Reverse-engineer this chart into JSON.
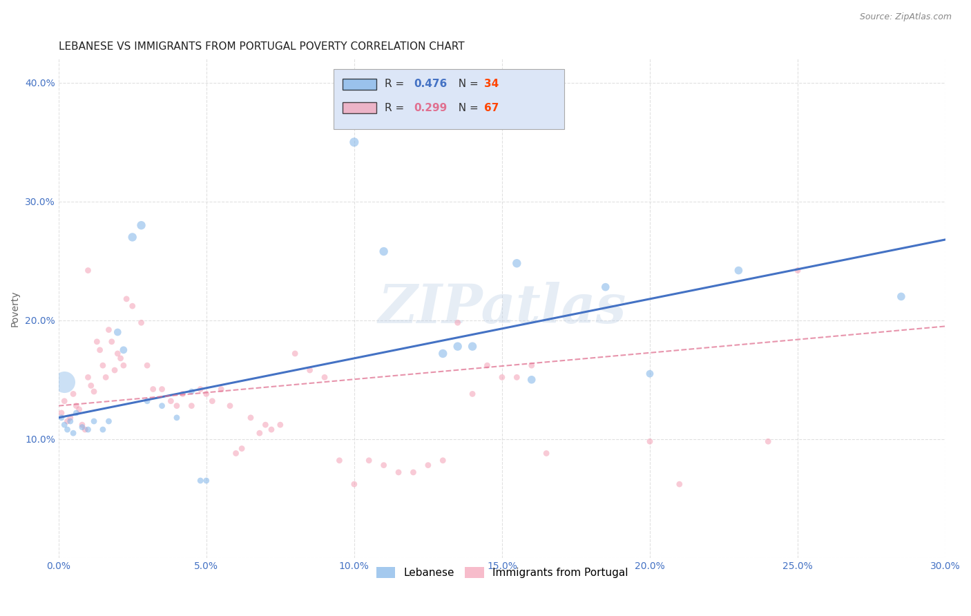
{
  "title": "LEBANESE VS IMMIGRANTS FROM PORTUGAL POVERTY CORRELATION CHART",
  "source": "Source: ZipAtlas.com",
  "ylabel": "Poverty",
  "watermark": "ZIPatlas",
  "xlim": [
    0.0,
    0.3
  ],
  "ylim": [
    0.0,
    0.42
  ],
  "xticks": [
    0.0,
    0.05,
    0.1,
    0.15,
    0.2,
    0.25,
    0.3
  ],
  "yticks": [
    0.0,
    0.1,
    0.2,
    0.3,
    0.4
  ],
  "xtick_labels": [
    "0.0%",
    "5.0%",
    "10.0%",
    "15.0%",
    "20.0%",
    "25.0%",
    "30.0%"
  ],
  "ytick_labels": [
    "",
    "10.0%",
    "20.0%",
    "30.0%",
    "40.0%"
  ],
  "legend_entries": [
    {
      "label": "Lebanese",
      "color": "#7EB3E8",
      "R": "0.476",
      "N": "34"
    },
    {
      "label": "Immigrants from Portugal",
      "color": "#F4A0B5",
      "R": "0.299",
      "N": "67"
    }
  ],
  "blue_scatter": [
    [
      0.001,
      0.118
    ],
    [
      0.002,
      0.112
    ],
    [
      0.003,
      0.108
    ],
    [
      0.004,
      0.115
    ],
    [
      0.005,
      0.105
    ],
    [
      0.006,
      0.122
    ],
    [
      0.008,
      0.11
    ],
    [
      0.01,
      0.108
    ],
    [
      0.012,
      0.115
    ],
    [
      0.015,
      0.108
    ],
    [
      0.017,
      0.115
    ],
    [
      0.02,
      0.19
    ],
    [
      0.022,
      0.175
    ],
    [
      0.025,
      0.27
    ],
    [
      0.028,
      0.28
    ],
    [
      0.03,
      0.132
    ],
    [
      0.035,
      0.128
    ],
    [
      0.04,
      0.118
    ],
    [
      0.045,
      0.14
    ],
    [
      0.048,
      0.065
    ],
    [
      0.05,
      0.065
    ],
    [
      0.1,
      0.35
    ],
    [
      0.11,
      0.258
    ],
    [
      0.13,
      0.172
    ],
    [
      0.135,
      0.178
    ],
    [
      0.14,
      0.178
    ],
    [
      0.155,
      0.248
    ],
    [
      0.16,
      0.15
    ],
    [
      0.185,
      0.228
    ],
    [
      0.2,
      0.155
    ],
    [
      0.23,
      0.242
    ],
    [
      0.285,
      0.22
    ]
  ],
  "blue_scatter_sizes": [
    40,
    40,
    40,
    40,
    40,
    40,
    40,
    40,
    40,
    40,
    40,
    60,
    60,
    80,
    80,
    40,
    40,
    40,
    40,
    40,
    40,
    90,
    80,
    80,
    80,
    80,
    80,
    70,
    70,
    60,
    70,
    70
  ],
  "blue_large_dot": [
    0.002,
    0.148
  ],
  "blue_large_dot_size": 500,
  "pink_scatter": [
    [
      0.001,
      0.122
    ],
    [
      0.002,
      0.132
    ],
    [
      0.003,
      0.115
    ],
    [
      0.004,
      0.118
    ],
    [
      0.005,
      0.138
    ],
    [
      0.006,
      0.128
    ],
    [
      0.007,
      0.125
    ],
    [
      0.008,
      0.112
    ],
    [
      0.009,
      0.108
    ],
    [
      0.01,
      0.152
    ],
    [
      0.011,
      0.145
    ],
    [
      0.012,
      0.14
    ],
    [
      0.013,
      0.182
    ],
    [
      0.014,
      0.175
    ],
    [
      0.015,
      0.162
    ],
    [
      0.016,
      0.152
    ],
    [
      0.017,
      0.192
    ],
    [
      0.018,
      0.182
    ],
    [
      0.019,
      0.158
    ],
    [
      0.02,
      0.172
    ],
    [
      0.021,
      0.168
    ],
    [
      0.022,
      0.162
    ],
    [
      0.023,
      0.218
    ],
    [
      0.025,
      0.212
    ],
    [
      0.028,
      0.198
    ],
    [
      0.03,
      0.162
    ],
    [
      0.032,
      0.142
    ],
    [
      0.035,
      0.142
    ],
    [
      0.038,
      0.132
    ],
    [
      0.04,
      0.128
    ],
    [
      0.042,
      0.138
    ],
    [
      0.045,
      0.128
    ],
    [
      0.048,
      0.142
    ],
    [
      0.05,
      0.138
    ],
    [
      0.052,
      0.132
    ],
    [
      0.055,
      0.142
    ],
    [
      0.058,
      0.128
    ],
    [
      0.06,
      0.088
    ],
    [
      0.062,
      0.092
    ],
    [
      0.065,
      0.118
    ],
    [
      0.068,
      0.105
    ],
    [
      0.07,
      0.112
    ],
    [
      0.072,
      0.108
    ],
    [
      0.075,
      0.112
    ],
    [
      0.08,
      0.172
    ],
    [
      0.085,
      0.158
    ],
    [
      0.09,
      0.152
    ],
    [
      0.095,
      0.082
    ],
    [
      0.1,
      0.062
    ],
    [
      0.105,
      0.082
    ],
    [
      0.11,
      0.078
    ],
    [
      0.115,
      0.072
    ],
    [
      0.12,
      0.072
    ],
    [
      0.125,
      0.078
    ],
    [
      0.13,
      0.082
    ],
    [
      0.135,
      0.198
    ],
    [
      0.14,
      0.138
    ],
    [
      0.145,
      0.162
    ],
    [
      0.15,
      0.152
    ],
    [
      0.155,
      0.152
    ],
    [
      0.16,
      0.162
    ],
    [
      0.165,
      0.088
    ],
    [
      0.2,
      0.098
    ],
    [
      0.21,
      0.062
    ],
    [
      0.24,
      0.098
    ],
    [
      0.25,
      0.242
    ],
    [
      0.01,
      0.242
    ]
  ],
  "pink_scatter_sizes": [
    40,
    40,
    40,
    40,
    40,
    40,
    40,
    40,
    40,
    40,
    40,
    40,
    40,
    40,
    40,
    40,
    40,
    40,
    40,
    40,
    40,
    40,
    40,
    40,
    40,
    40,
    40,
    40,
    40,
    40,
    40,
    40,
    40,
    40,
    40,
    40,
    40,
    40,
    40,
    40,
    40,
    40,
    40,
    40,
    40,
    40,
    40,
    40,
    40,
    40,
    40,
    40,
    40,
    40,
    40,
    40,
    40,
    40,
    40,
    40,
    40,
    40,
    40,
    40,
    40,
    40,
    40
  ],
  "blue_line_x": [
    0.0,
    0.3
  ],
  "blue_line_y": [
    0.118,
    0.268
  ],
  "pink_line_x": [
    0.0,
    0.3
  ],
  "pink_line_y": [
    0.128,
    0.195
  ],
  "blue_color": "#7EB3E8",
  "pink_color": "#F4A0B5",
  "blue_line_color": "#4472C4",
  "pink_line_color": "#E07090",
  "background_color": "#ffffff",
  "grid_color": "#dddddd",
  "title_fontsize": 11,
  "tick_fontsize": 10,
  "legend_box_color": "#dce6f7",
  "R_blue_color": "#4472C4",
  "N_blue_color": "#FF4500",
  "R_pink_color": "#E07090",
  "N_pink_color": "#FF4500"
}
